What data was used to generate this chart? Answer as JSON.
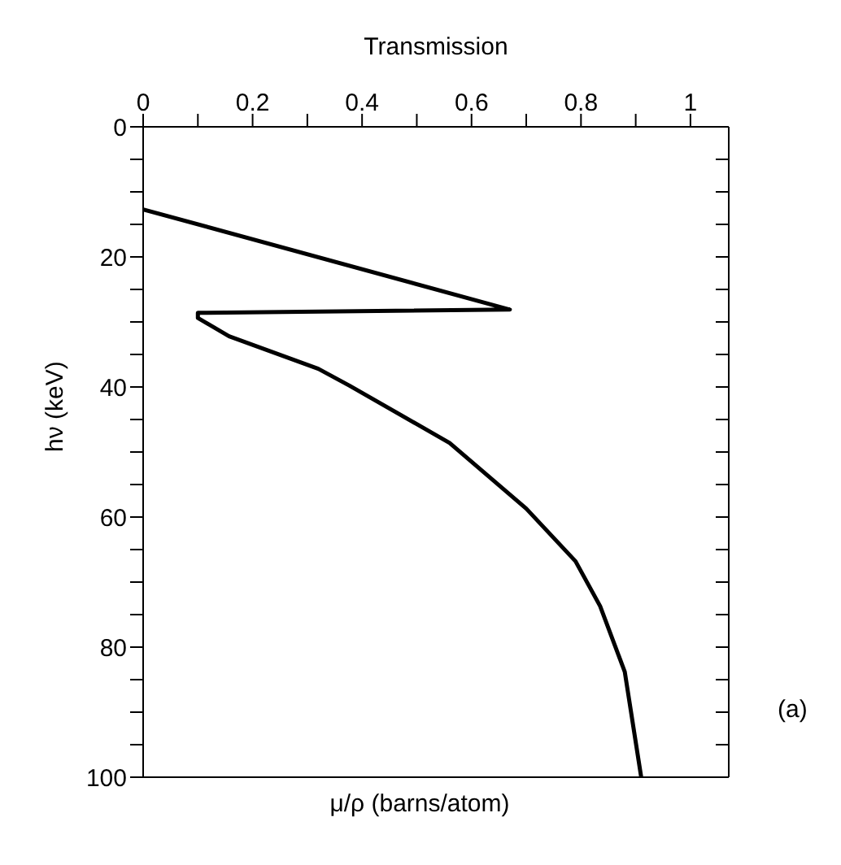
{
  "chart_data": {
    "type": "line",
    "xlabel": "Transmission",
    "ylabel": "hν (keV)",
    "annotations": [
      "μ/ρ (barns/atom)",
      "(a)"
    ],
    "xlim": [
      0,
      1.07
    ],
    "xticks": [
      0,
      {
        "value": 0.1,
        "label": null
      },
      0.2,
      {
        "value": 0.3,
        "label": null
      },
      0.4,
      {
        "value": 0.5,
        "label": null
      },
      0.6,
      {
        "value": 0.7,
        "label": null
      },
      0.8,
      {
        "value": 0.9,
        "label": null
      },
      1
    ],
    "ylim": [
      100,
      0
    ],
    "yticks": [
      0,
      {
        "value": 5,
        "label": null
      },
      {
        "value": 10,
        "label": null
      },
      {
        "value": 15,
        "label": null
      },
      20,
      {
        "value": 25,
        "label": null
      },
      {
        "value": 30,
        "label": null
      },
      {
        "value": 35,
        "label": null
      },
      40,
      {
        "value": 45,
        "label": null
      },
      {
        "value": 50,
        "label": null
      },
      {
        "value": 55,
        "label": null
      },
      60,
      {
        "value": 65,
        "label": null
      },
      {
        "value": 70,
        "label": null
      },
      {
        "value": 75,
        "label": null
      },
      80,
      {
        "value": 85,
        "label": null
      },
      {
        "value": 90,
        "label": null
      },
      {
        "value": 95,
        "label": null
      },
      100
    ],
    "marker": "none",
    "line_style": "solid",
    "series": [
      {
        "color": "#000000",
        "x": [
          0,
          0.67,
          0.1,
          0.1,
          0.157,
          0.32,
          0.377,
          0.56,
          0.7,
          0.79,
          0.835,
          0.88,
          0.91
        ],
        "values": [
          12.7,
          28.1,
          28.6,
          29.4,
          32.2,
          37.2,
          39.8,
          48.6,
          58.7,
          66.8,
          73.7,
          83.8,
          100
        ]
      }
    ]
  }
}
